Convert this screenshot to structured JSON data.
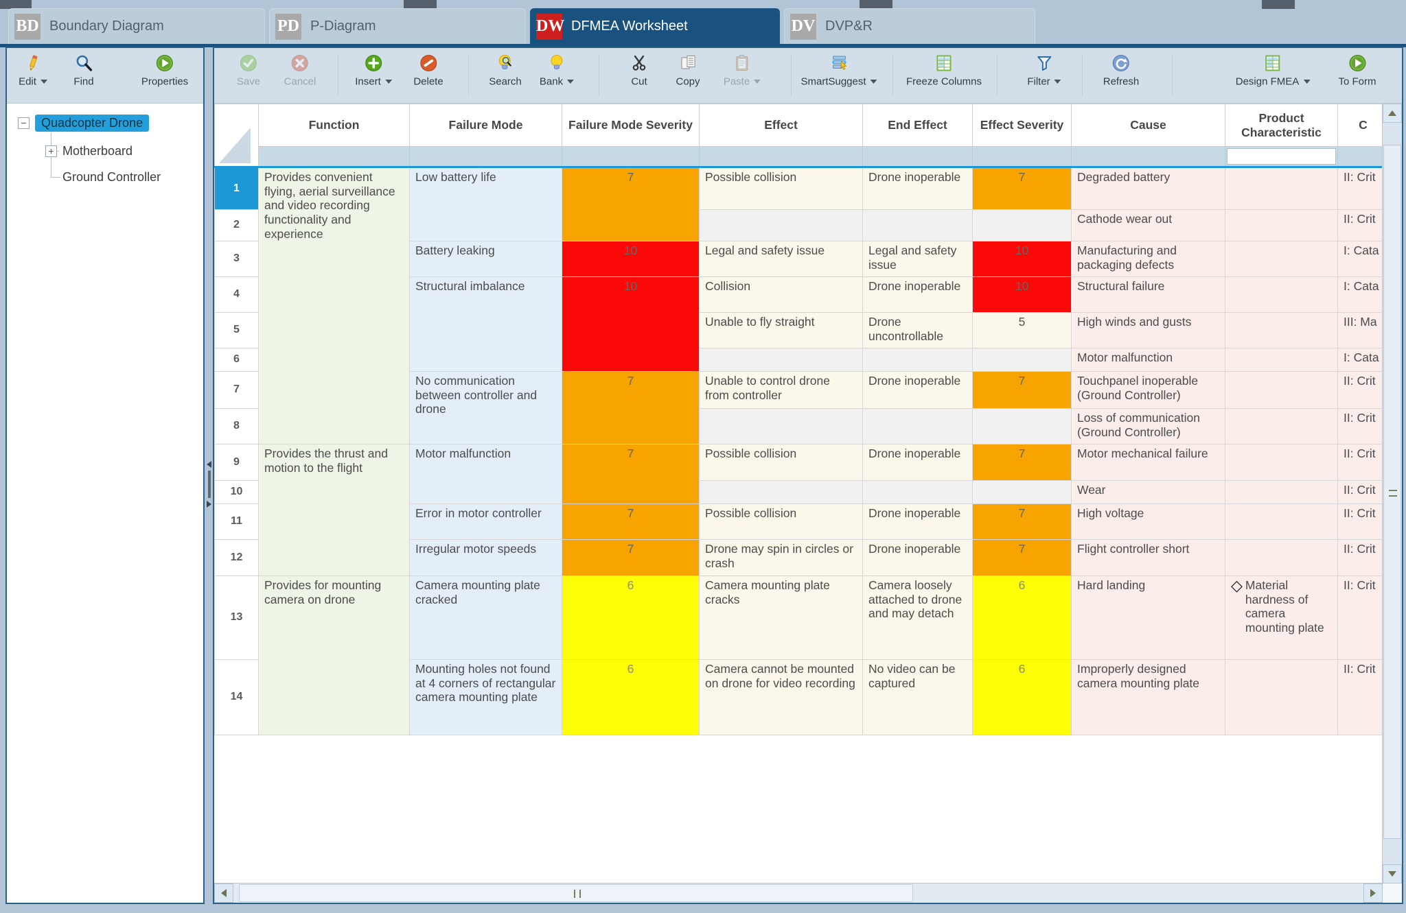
{
  "tabs": [
    {
      "badge": "BD",
      "label": "Boundary Diagram",
      "active": false,
      "badge_color": "#a9a9a9"
    },
    {
      "badge": "PD",
      "label": "P-Diagram",
      "active": false,
      "badge_color": "#a9a9a9"
    },
    {
      "badge": "DW",
      "label": "DFMEA Worksheet",
      "active": true,
      "badge_color": "#ce1f1f"
    },
    {
      "badge": "DV",
      "label": "DVP&R",
      "active": false,
      "badge_color": "#a9a9a9"
    }
  ],
  "left_toolbar": {
    "buttons": [
      {
        "label": "Edit",
        "icon": "pencil-icon",
        "dropdown": true,
        "disabled": false
      },
      {
        "label": "Find",
        "icon": "magnifier-icon",
        "dropdown": false,
        "disabled": false
      },
      {
        "label": "Properties",
        "icon": "green-play-circle-icon",
        "dropdown": false,
        "disabled": false
      }
    ]
  },
  "main_toolbar": {
    "buttons": [
      {
        "label": "Save",
        "icon": "green-check-circle-icon",
        "dropdown": false,
        "disabled": true
      },
      {
        "label": "Cancel",
        "icon": "red-x-circle-icon",
        "dropdown": false,
        "disabled": true
      },
      {
        "label": "Insert",
        "icon": "green-plus-circle-icon",
        "dropdown": true,
        "disabled": false
      },
      {
        "label": "Delete",
        "icon": "orange-slash-circle-icon",
        "dropdown": false,
        "disabled": false
      },
      {
        "label": "Search",
        "icon": "bulb-magnifier-icon",
        "dropdown": false,
        "disabled": false
      },
      {
        "label": "Bank",
        "icon": "bulb-icon",
        "dropdown": true,
        "disabled": false
      },
      {
        "label": "Cut",
        "icon": "scissors-icon",
        "dropdown": false,
        "disabled": false
      },
      {
        "label": "Copy",
        "icon": "copy-icon",
        "dropdown": false,
        "disabled": false
      },
      {
        "label": "Paste",
        "icon": "clipboard-icon",
        "dropdown": true,
        "disabled": true
      },
      {
        "label": "SmartSuggest",
        "icon": "smart-suggest-icon",
        "dropdown": true,
        "disabled": false
      },
      {
        "label": "Freeze Columns",
        "icon": "table-grid-icon",
        "dropdown": false,
        "disabled": false
      },
      {
        "label": "Filter",
        "icon": "funnel-icon",
        "dropdown": true,
        "disabled": false
      },
      {
        "label": "Refresh",
        "icon": "refresh-icon",
        "dropdown": false,
        "disabled": false
      },
      {
        "label": "Design FMEA",
        "icon": "table-grid-icon",
        "dropdown": true,
        "disabled": false
      },
      {
        "label": "To Form",
        "icon": "green-play-circle-icon",
        "dropdown": false,
        "disabled": false
      }
    ]
  },
  "tree": {
    "root": {
      "label": "Quadcopter Drone",
      "selected": true,
      "expander": "minus"
    },
    "children": [
      {
        "label": "Motherboard",
        "expander": "plus"
      },
      {
        "label": "Ground Controller",
        "expander": "none"
      }
    ]
  },
  "grid": {
    "columns": [
      "Function",
      "Failure Mode",
      "Failure Mode Severity",
      "Effect",
      "End Effect",
      "Effect Severity",
      "Cause",
      "Product Characteristic",
      "C"
    ],
    "filter_inputbox_column_index": 7,
    "severity_colors": {
      "orange": "#F7A300",
      "red": "#FB0808",
      "yellow": "#FDFD05"
    },
    "rows": [
      {
        "num": "1",
        "selected": true,
        "cells": [
          {
            "text": "Provides convenient flying, aerial surveillance and video recording functionality and experience",
            "rowspan": 8,
            "bg": "green"
          },
          {
            "text": "Low battery life",
            "rowspan": 2,
            "bg": "blue"
          },
          {
            "text": "7",
            "rowspan": 2,
            "bg": "sev-orange"
          },
          {
            "text": "Possible collision",
            "bg": "cream"
          },
          {
            "text": "Drone inoperable",
            "bg": "cream"
          },
          {
            "text": "7",
            "bg": "sev-orange"
          },
          {
            "text": "Degraded battery",
            "bg": "pink"
          },
          {
            "text": "",
            "bg": "pink"
          },
          {
            "text": "II: Crit",
            "bg": "pink",
            "nowrap": true
          }
        ]
      },
      {
        "num": "2",
        "cells": [
          {
            "text": "",
            "bg": "gray"
          },
          {
            "text": "",
            "bg": "gray"
          },
          {
            "text": "",
            "bg": "gray"
          },
          {
            "text": "Cathode wear out",
            "bg": "pink"
          },
          {
            "text": "",
            "bg": "pink"
          },
          {
            "text": "II: Crit",
            "bg": "pink",
            "nowrap": true
          }
        ]
      },
      {
        "num": "3",
        "cells": [
          {
            "text": "Battery leaking",
            "bg": "blue"
          },
          {
            "text": "10",
            "bg": "sev-red"
          },
          {
            "text": "Legal and safety issue",
            "bg": "cream"
          },
          {
            "text": "Legal and safety issue",
            "bg": "cream"
          },
          {
            "text": "10",
            "bg": "sev-red"
          },
          {
            "text": "Manufacturing and packaging defects",
            "bg": "pink"
          },
          {
            "text": "",
            "bg": "pink"
          },
          {
            "text": "I: Cata",
            "bg": "pink",
            "nowrap": true
          }
        ]
      },
      {
        "num": "4",
        "cells": [
          {
            "text": "Structural imbalance",
            "rowspan": 3,
            "bg": "blue"
          },
          {
            "text": "10",
            "rowspan": 3,
            "bg": "sev-red"
          },
          {
            "text": "Collision",
            "bg": "cream"
          },
          {
            "text": "Drone inoperable",
            "bg": "cream"
          },
          {
            "text": "10",
            "bg": "sev-red"
          },
          {
            "text": "Structural failure",
            "bg": "pink"
          },
          {
            "text": "",
            "bg": "pink"
          },
          {
            "text": "I: Cata",
            "bg": "pink",
            "nowrap": true
          }
        ]
      },
      {
        "num": "5",
        "cells": [
          {
            "text": "Unable to fly straight",
            "bg": "cream"
          },
          {
            "text": "Drone uncontrollable",
            "bg": "cream"
          },
          {
            "text": "5",
            "bg": "sev-plain"
          },
          {
            "text": "High winds and gusts",
            "bg": "pink"
          },
          {
            "text": "",
            "bg": "pink"
          },
          {
            "text": "III: Ma",
            "bg": "pink",
            "nowrap": true
          }
        ]
      },
      {
        "num": "6",
        "cells": [
          {
            "text": "",
            "bg": "gray"
          },
          {
            "text": "",
            "bg": "gray"
          },
          {
            "text": "",
            "bg": "gray"
          },
          {
            "text": "Motor malfunction",
            "bg": "pink"
          },
          {
            "text": "",
            "bg": "pink"
          },
          {
            "text": "I: Cata",
            "bg": "pink",
            "nowrap": true
          }
        ]
      },
      {
        "num": "7",
        "cells": [
          {
            "text": "No communication between controller and drone",
            "rowspan": 2,
            "bg": "blue"
          },
          {
            "text": "7",
            "rowspan": 2,
            "bg": "sev-orange"
          },
          {
            "text": "Unable to control drone from controller",
            "bg": "cream"
          },
          {
            "text": "Drone inoperable",
            "bg": "cream"
          },
          {
            "text": "7",
            "bg": "sev-orange"
          },
          {
            "text": "Touchpanel inoperable (Ground Controller)",
            "bg": "pink"
          },
          {
            "text": "",
            "bg": "pink"
          },
          {
            "text": "II: Crit",
            "bg": "pink",
            "nowrap": true
          }
        ]
      },
      {
        "num": "8",
        "cells": [
          {
            "text": "",
            "bg": "gray"
          },
          {
            "text": "",
            "bg": "gray"
          },
          {
            "text": "",
            "bg": "gray"
          },
          {
            "text": "Loss of communication (Ground Controller)",
            "bg": "pink"
          },
          {
            "text": "",
            "bg": "pink"
          },
          {
            "text": "II: Crit",
            "bg": "pink",
            "nowrap": true
          }
        ]
      },
      {
        "num": "9",
        "cells": [
          {
            "text": "Provides the thrust and motion to the flight",
            "rowspan": 4,
            "bg": "green"
          },
          {
            "text": "Motor malfunction",
            "rowspan": 2,
            "bg": "blue"
          },
          {
            "text": "7",
            "rowspan": 2,
            "bg": "sev-orange"
          },
          {
            "text": "Possible collision",
            "bg": "cream"
          },
          {
            "text": "Drone inoperable",
            "bg": "cream"
          },
          {
            "text": "7",
            "bg": "sev-orange"
          },
          {
            "text": "Motor mechanical failure",
            "bg": "pink"
          },
          {
            "text": "",
            "bg": "pink"
          },
          {
            "text": "II: Crit",
            "bg": "pink",
            "nowrap": true
          }
        ]
      },
      {
        "num": "10",
        "cells": [
          {
            "text": "",
            "bg": "gray"
          },
          {
            "text": "",
            "bg": "gray"
          },
          {
            "text": "",
            "bg": "gray"
          },
          {
            "text": "Wear",
            "bg": "pink"
          },
          {
            "text": "",
            "bg": "pink"
          },
          {
            "text": "II: Crit",
            "bg": "pink",
            "nowrap": true
          }
        ]
      },
      {
        "num": "11",
        "cells": [
          {
            "text": "Error in motor controller",
            "bg": "blue"
          },
          {
            "text": "7",
            "bg": "sev-orange"
          },
          {
            "text": "Possible collision",
            "bg": "cream"
          },
          {
            "text": "Drone inoperable",
            "bg": "cream"
          },
          {
            "text": "7",
            "bg": "sev-orange"
          },
          {
            "text": "High voltage",
            "bg": "pink"
          },
          {
            "text": "",
            "bg": "pink"
          },
          {
            "text": "II: Crit",
            "bg": "pink",
            "nowrap": true
          }
        ]
      },
      {
        "num": "12",
        "cells": [
          {
            "text": "Irregular motor speeds",
            "bg": "blue"
          },
          {
            "text": "7",
            "bg": "sev-orange"
          },
          {
            "text": "Drone may spin in circles or crash",
            "bg": "cream"
          },
          {
            "text": "Drone inoperable",
            "bg": "cream"
          },
          {
            "text": "7",
            "bg": "sev-orange"
          },
          {
            "text": "Flight controller short",
            "bg": "pink"
          },
          {
            "text": "",
            "bg": "pink"
          },
          {
            "text": "II: Crit",
            "bg": "pink",
            "nowrap": true
          }
        ]
      },
      {
        "num": "13",
        "cells": [
          {
            "text": "Provides for mounting camera on drone",
            "rowspan": 2,
            "bg": "green"
          },
          {
            "text": "Camera mounting plate cracked",
            "bg": "blue"
          },
          {
            "text": "6",
            "bg": "sev-yellow"
          },
          {
            "text": "Camera mounting plate cracks",
            "bg": "cream"
          },
          {
            "text": "Camera loosely attached to drone and may detach",
            "bg": "cream"
          },
          {
            "text": "6",
            "bg": "sev-yellow"
          },
          {
            "text": "Hard landing",
            "bg": "pink"
          },
          {
            "text": "Material hardness of camera mounting plate",
            "bg": "pink",
            "diamond": true
          },
          {
            "text": "II: Crit",
            "bg": "pink",
            "nowrap": true
          }
        ]
      },
      {
        "num": "14",
        "cells": [
          {
            "text": "Mounting holes not found at 4 corners of rectangular camera mounting plate",
            "bg": "blue"
          },
          {
            "text": "6",
            "bg": "sev-yellow"
          },
          {
            "text": "Camera cannot be mounted on drone for video recording",
            "bg": "cream"
          },
          {
            "text": "No video can be captured",
            "bg": "cream"
          },
          {
            "text": "6",
            "bg": "sev-yellow"
          },
          {
            "text": "Improperly designed camera mounting plate",
            "bg": "pink"
          },
          {
            "text": "",
            "bg": "pink"
          },
          {
            "text": "II: Crit",
            "bg": "pink",
            "nowrap": true
          }
        ]
      }
    ]
  }
}
